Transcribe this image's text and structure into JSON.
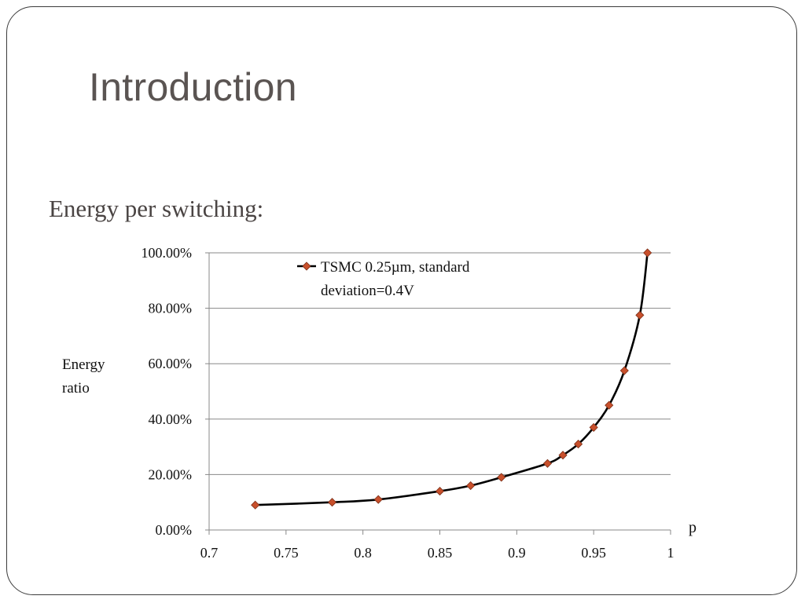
{
  "slide": {
    "title": "Introduction",
    "subtitle": "Energy per switching:"
  },
  "colors": {
    "line": "#000000",
    "marker": "#c8502c",
    "grid": "#888888",
    "title": "#5a5452"
  },
  "chart_data": {
    "type": "line",
    "xlabel": "p",
    "ylabel": "Energy ratio",
    "xlim": [
      0.7,
      1.0
    ],
    "ylim": [
      0,
      1.0
    ],
    "xticks": [
      0.7,
      0.75,
      0.8,
      0.85,
      0.9,
      0.95,
      1
    ],
    "xtick_labels": [
      "0.7",
      "0.75",
      "0.8",
      "0.85",
      "0.9",
      "0.95",
      "1"
    ],
    "yticks": [
      0,
      0.2,
      0.4,
      0.6,
      0.8,
      1.0
    ],
    "ytick_labels": [
      "0.00%",
      "20.00%",
      "40.00%",
      "60.00%",
      "80.00%",
      "100.00%"
    ],
    "grid": "horizontal",
    "legend_position": "top-center",
    "series": [
      {
        "name": "TSMC 0.25µm, standard deviation=0.4V",
        "legend_lines": [
          "TSMC 0.25µm, standard",
          "deviation=0.4V"
        ],
        "marker": "diamond",
        "x": [
          0.73,
          0.78,
          0.81,
          0.85,
          0.87,
          0.89,
          0.92,
          0.93,
          0.94,
          0.95,
          0.96,
          0.97,
          0.98,
          0.985
        ],
        "y": [
          0.09,
          0.1,
          0.11,
          0.14,
          0.16,
          0.19,
          0.24,
          0.27,
          0.31,
          0.37,
          0.45,
          0.575,
          0.775,
          1.0
        ]
      }
    ]
  }
}
